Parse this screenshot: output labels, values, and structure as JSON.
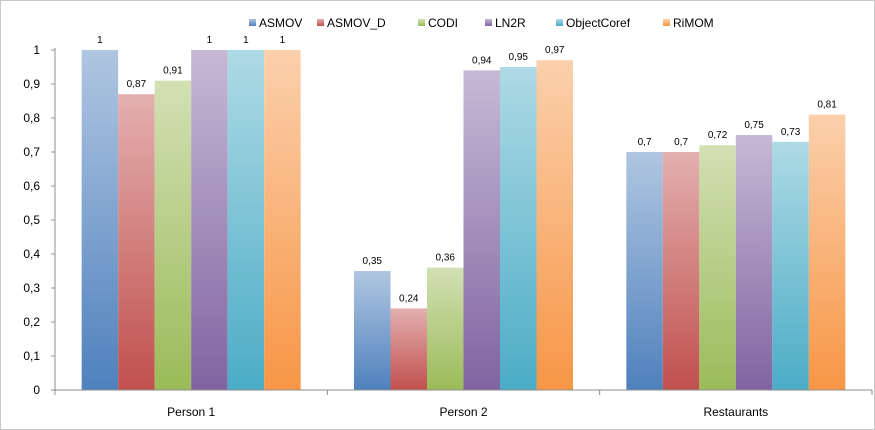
{
  "chart_data": {
    "type": "bar",
    "title": "",
    "xlabel": "",
    "ylabel": "",
    "ylim": [
      0,
      1
    ],
    "yticks": [
      "0",
      "0,1",
      "0,2",
      "0,3",
      "0,4",
      "0,5",
      "0,6",
      "0,7",
      "0,8",
      "0,9",
      "1"
    ],
    "legend_position": "top",
    "grid": false,
    "categories": [
      "Person 1",
      "Person 2",
      "Restaurants"
    ],
    "series": [
      {
        "name": "ASMOV",
        "color": "#4f81bd",
        "values": [
          1,
          0.35,
          0.7
        ],
        "labels": [
          "1",
          "0,35",
          "0,7"
        ]
      },
      {
        "name": "ASMOV_D",
        "color": "#c0504d",
        "values": [
          0.87,
          0.24,
          0.7
        ],
        "labels": [
          "0,87",
          "0,24",
          "0,7"
        ]
      },
      {
        "name": "CODI",
        "color": "#9bbb59",
        "values": [
          0.91,
          0.36,
          0.72
        ],
        "labels": [
          "0,91",
          "0,36",
          "0,72"
        ]
      },
      {
        "name": "LN2R",
        "color": "#8064a2",
        "values": [
          1,
          0.94,
          0.75
        ],
        "labels": [
          "1",
          "0,94",
          "0,75"
        ]
      },
      {
        "name": "ObjectCoref",
        "color": "#4bacc6",
        "values": [
          1,
          0.95,
          0.73
        ],
        "labels": [
          "1",
          "0,95",
          "0,73"
        ]
      },
      {
        "name": "RiMOM",
        "color": "#f79646",
        "values": [
          1,
          0.97,
          0.81
        ],
        "labels": [
          "1",
          "0,97",
          "0,81"
        ]
      }
    ]
  }
}
